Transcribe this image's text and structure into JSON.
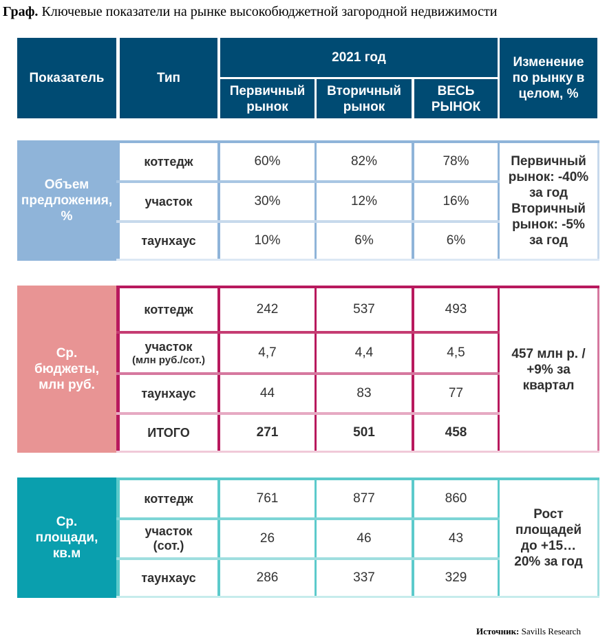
{
  "title": {
    "prefix": "Граф.",
    "text": "Ключевые показатели на рынке высокобюджетной загородной недвижимости"
  },
  "header": {
    "indicator": "Показатель",
    "type": "Тип",
    "year": "2021 год",
    "primary": "Первичный рынок",
    "secondary": "Вторичный рынок",
    "total": "ВЕСЬ РЫНОК",
    "change": "Изменение по рынку в целом, %"
  },
  "colors": {
    "header": "#004b73",
    "supply": "#8fb4d9",
    "budget": "#e89494",
    "budget_border": "#b8195d",
    "area": "#0a9fae",
    "area_border": "#5ccacb"
  },
  "sections": {
    "supply": {
      "label": "Объем предложения, %",
      "rows": [
        {
          "type": "коттедж",
          "primary": "60%",
          "secondary": "82%",
          "total": "78%"
        },
        {
          "type": "участок",
          "primary": "30%",
          "secondary": "12%",
          "total": "16%"
        },
        {
          "type": "таунхаус",
          "primary": "10%",
          "secondary": "6%",
          "total": "6%"
        }
      ],
      "change": "Первичный рынок: -40% за год Вторичный рынок: -5% за год"
    },
    "budget": {
      "label": "Ср. бюджеты, млн руб.",
      "rows": [
        {
          "type": "коттедж",
          "subtype": "",
          "primary": "242",
          "secondary": "537",
          "total": "493"
        },
        {
          "type": "участок",
          "subtype": "(млн руб./сот.)",
          "primary": "4,7",
          "secondary": "4,4",
          "total": "4,5"
        },
        {
          "type": "таунхаус",
          "subtype": "",
          "primary": "44",
          "secondary": "83",
          "total": "77"
        },
        {
          "type": "ИТОГО",
          "subtype": "",
          "primary": "271",
          "secondary": "501",
          "total": "458"
        }
      ],
      "change": "457 млн р. / +9% за квартал"
    },
    "area": {
      "label": "Ср. площади, кв.м",
      "rows": [
        {
          "type": "коттедж",
          "subtype": "",
          "primary": "761",
          "secondary": "877",
          "total": "860"
        },
        {
          "type": "участок",
          "subtype": "(сот.)",
          "primary": "26",
          "secondary": "46",
          "total": "43"
        },
        {
          "type": "таунхаус",
          "subtype": "",
          "primary": "286",
          "secondary": "337",
          "total": "329"
        }
      ],
      "change": "Рост площадей до +15…20% за год"
    }
  },
  "source": {
    "label": "Источник:",
    "text": "Savills Research"
  }
}
